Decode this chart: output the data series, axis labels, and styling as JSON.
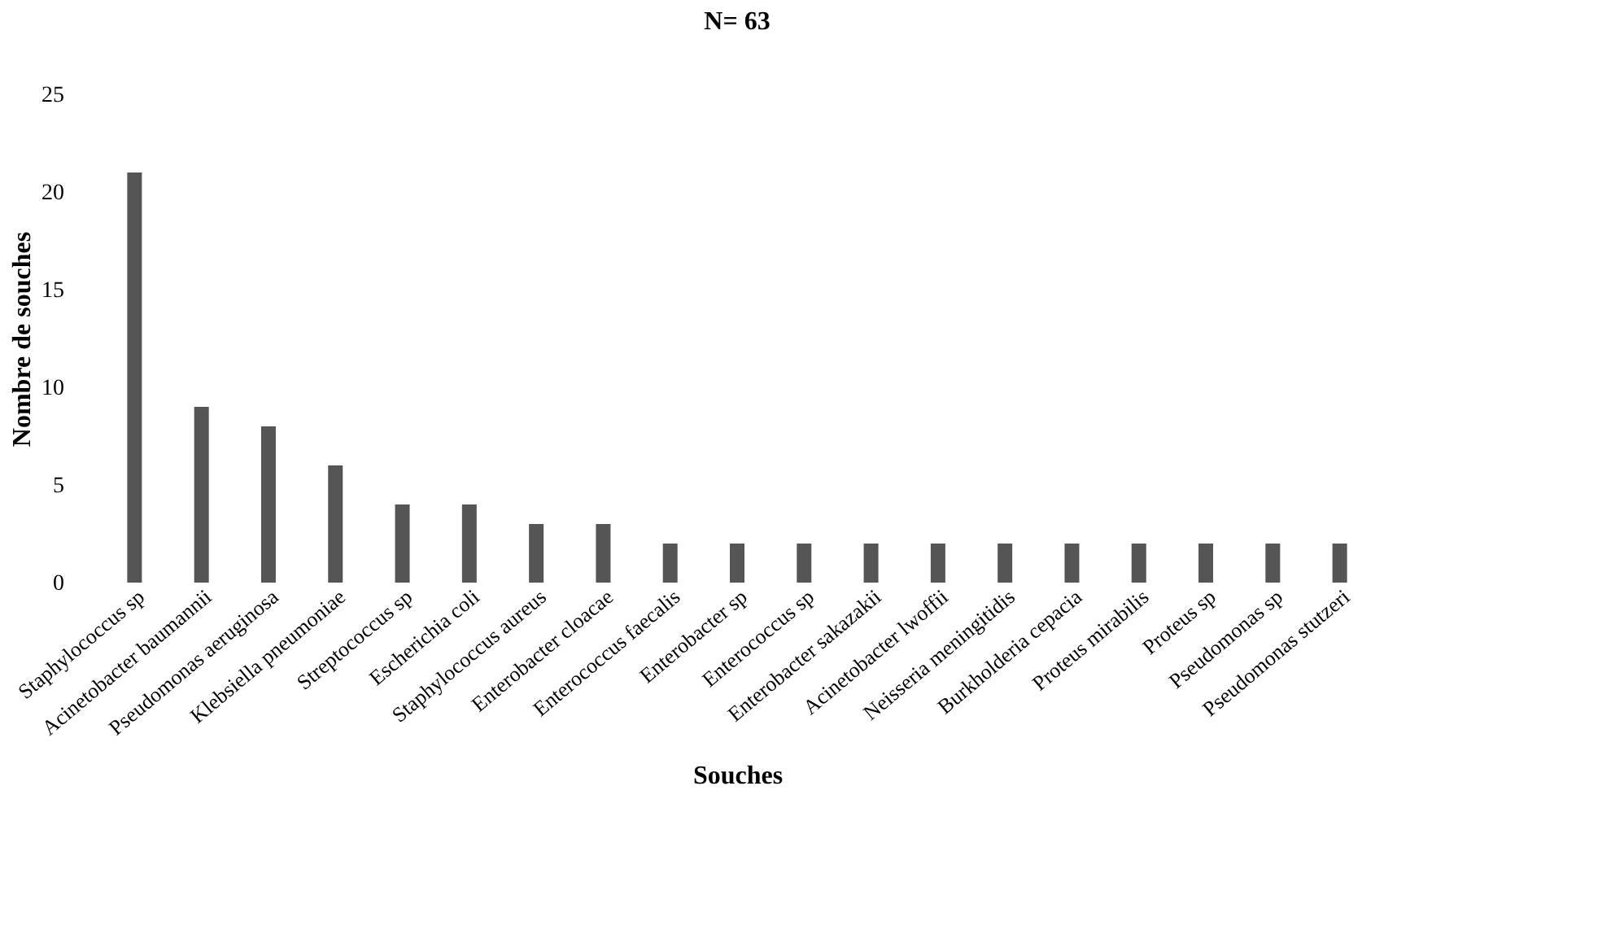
{
  "chart_data": {
    "type": "bar",
    "title": "N= 63",
    "xlabel": "Souches",
    "ylabel": "Nombre de souches",
    "categories": [
      "Staphylococcus sp",
      "Acinetobacter baumannii",
      "Pseudomonas aeruginosa",
      "Klebsiella pneumoniae",
      "Streptococcus sp",
      "Escherichia coli",
      "Staphylococcus aureus",
      "Enterobacter cloacae",
      "Enterococcus faecalis",
      "Enterobacter sp",
      "Enterococcus sp",
      "Enterobacter sakazakii",
      "Acinetobacter lwoffii",
      "Neisseria meningitidis",
      "Burkholderia cepacia",
      "Proteus mirabilis",
      "Proteus sp",
      "Pseudomonas sp",
      "Pseudomonas stutzeri"
    ],
    "values": [
      21,
      9,
      8,
      6,
      4,
      4,
      3,
      3,
      2,
      2,
      2,
      2,
      2,
      2,
      2,
      2,
      2,
      2,
      2
    ],
    "color": "#555555",
    "ylim": [
      0,
      25
    ],
    "yticks": [
      0,
      5,
      10,
      15,
      20,
      25
    ],
    "grid": false
  }
}
